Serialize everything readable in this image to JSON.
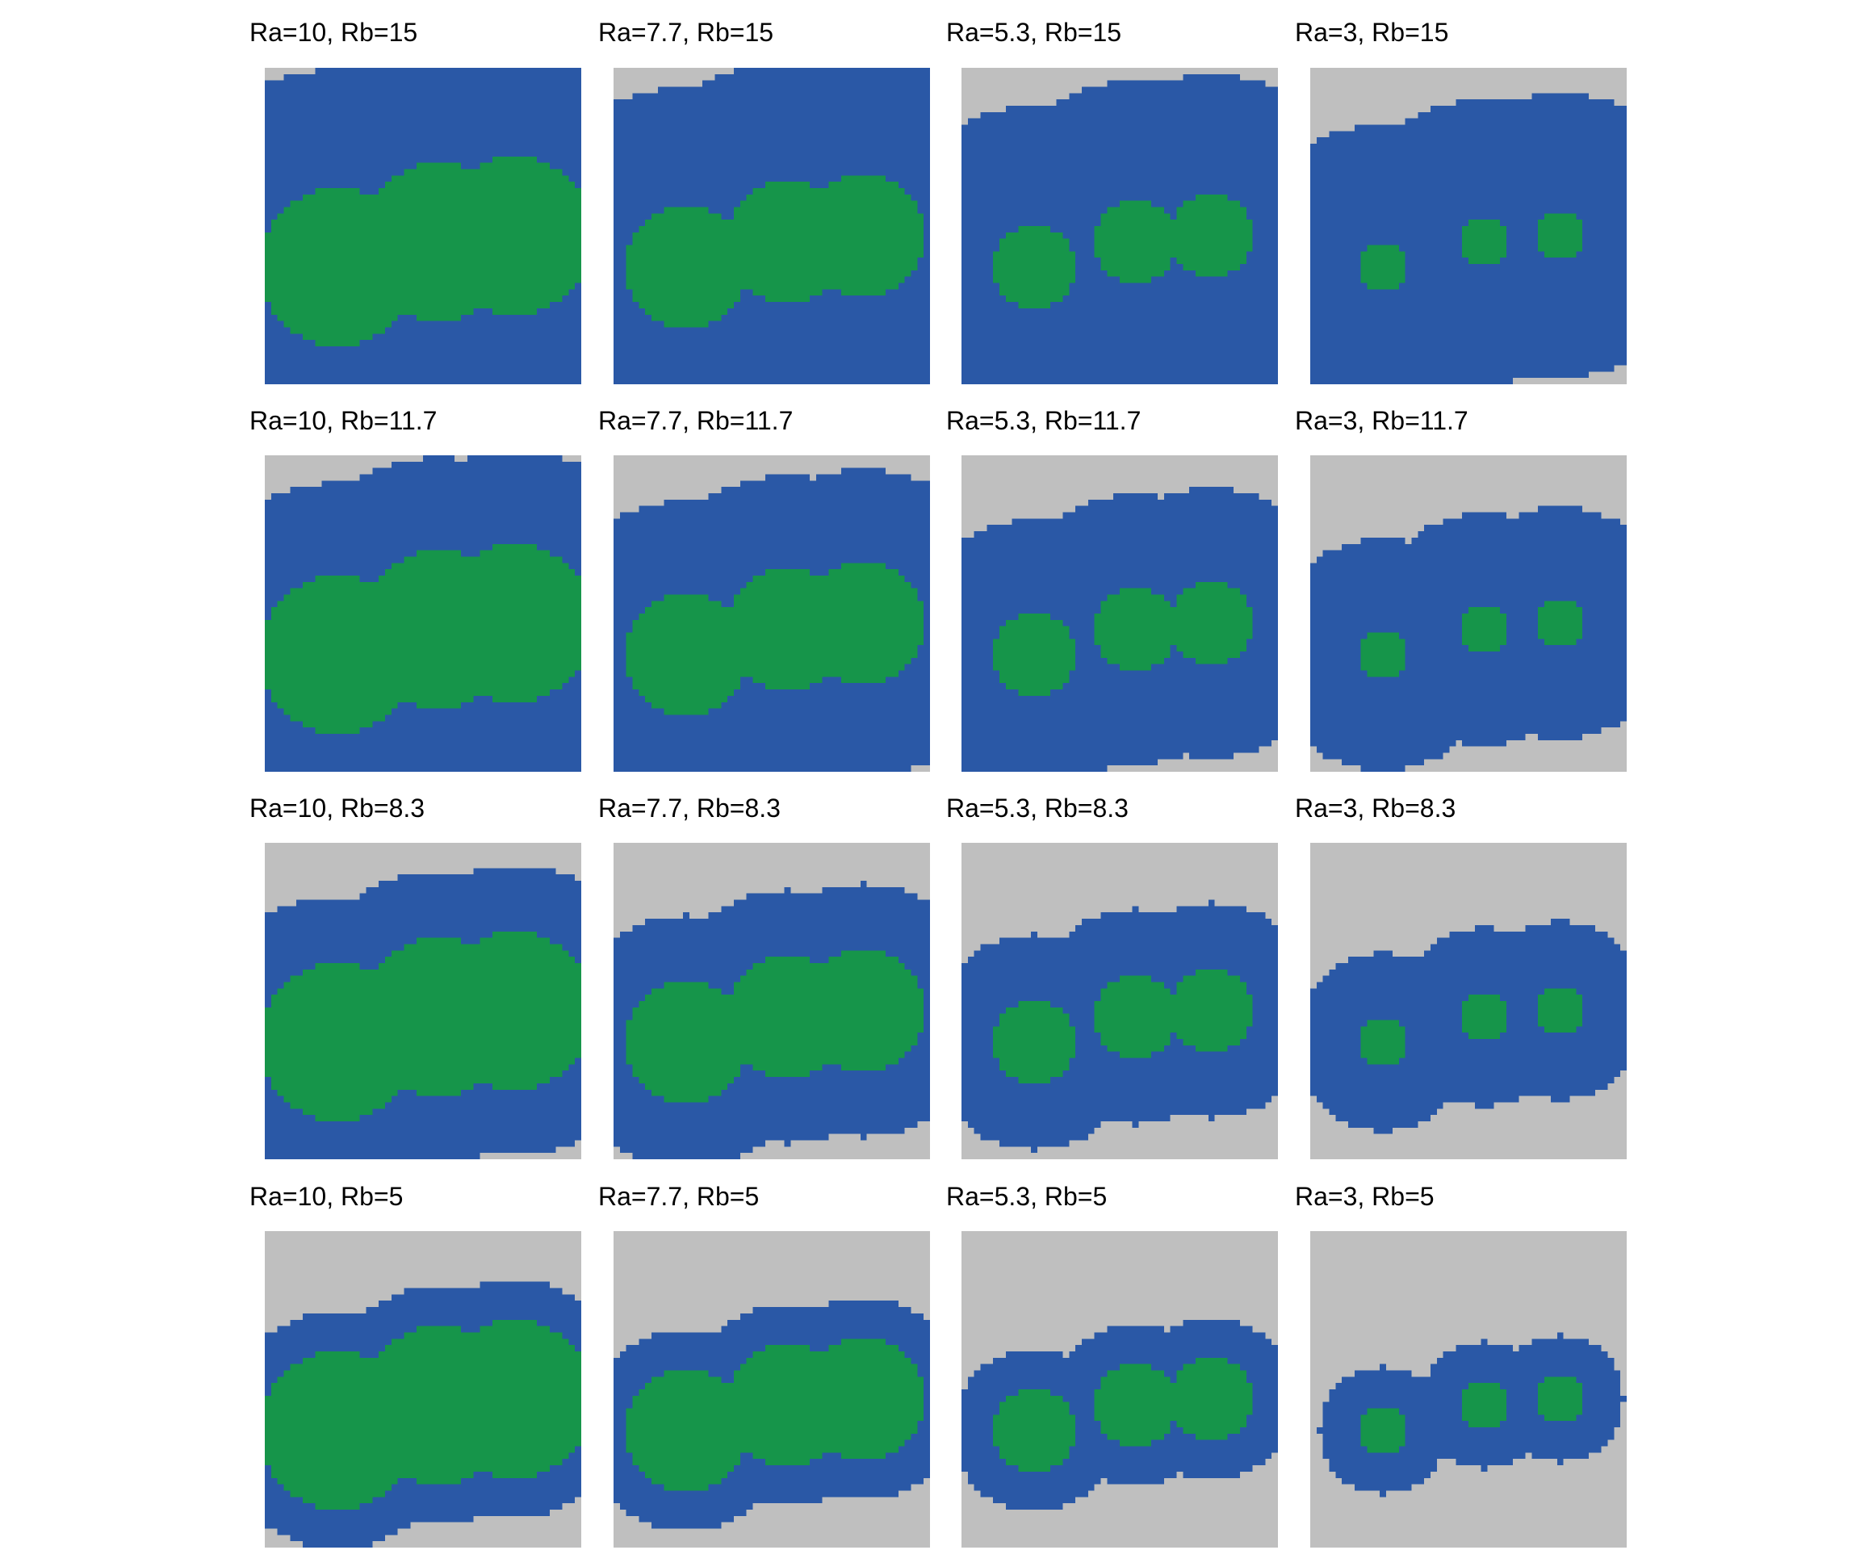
{
  "colors": {
    "background": "#bfbfbf",
    "outer_region": "#2a58a6",
    "inner_region": "#16954a"
  },
  "panels": [
    {
      "title": "Ra=10, Rb=15",
      "Ra": 10,
      "Rb": 15
    },
    {
      "title": "Ra=7.7, Rb=15",
      "Ra": 7.7,
      "Rb": 15
    },
    {
      "title": "Ra=5.3, Rb=15",
      "Ra": 5.3,
      "Rb": 15
    },
    {
      "title": "Ra=3, Rb=15",
      "Ra": 3,
      "Rb": 15
    },
    {
      "title": "Ra=10, Rb=11.7",
      "Ra": 10,
      "Rb": 11.7
    },
    {
      "title": "Ra=7.7, Rb=11.7",
      "Ra": 7.7,
      "Rb": 11.7
    },
    {
      "title": "Ra=5.3, Rb=11.7",
      "Ra": 5.3,
      "Rb": 11.7
    },
    {
      "title": "Ra=3, Rb=11.7",
      "Ra": 3,
      "Rb": 11.7
    },
    {
      "title": "Ra=10, Rb=8.3",
      "Ra": 10,
      "Rb": 8.3
    },
    {
      "title": "Ra=7.7, Rb=8.3",
      "Ra": 7.7,
      "Rb": 8.3
    },
    {
      "title": "Ra=5.3, Rb=8.3",
      "Ra": 5.3,
      "Rb": 8.3
    },
    {
      "title": "Ra=3, Rb=8.3",
      "Ra": 3,
      "Rb": 8.3
    },
    {
      "title": "Ra=10, Rb=5",
      "Ra": 10,
      "Rb": 5
    },
    {
      "title": "Ra=7.7, Rb=5",
      "Ra": 7.7,
      "Rb": 5
    },
    {
      "title": "Ra=5.3, Rb=5",
      "Ra": 5.3,
      "Rb": 5
    },
    {
      "title": "Ra=3, Rb=5",
      "Ra": 3,
      "Rb": 5
    }
  ]
}
